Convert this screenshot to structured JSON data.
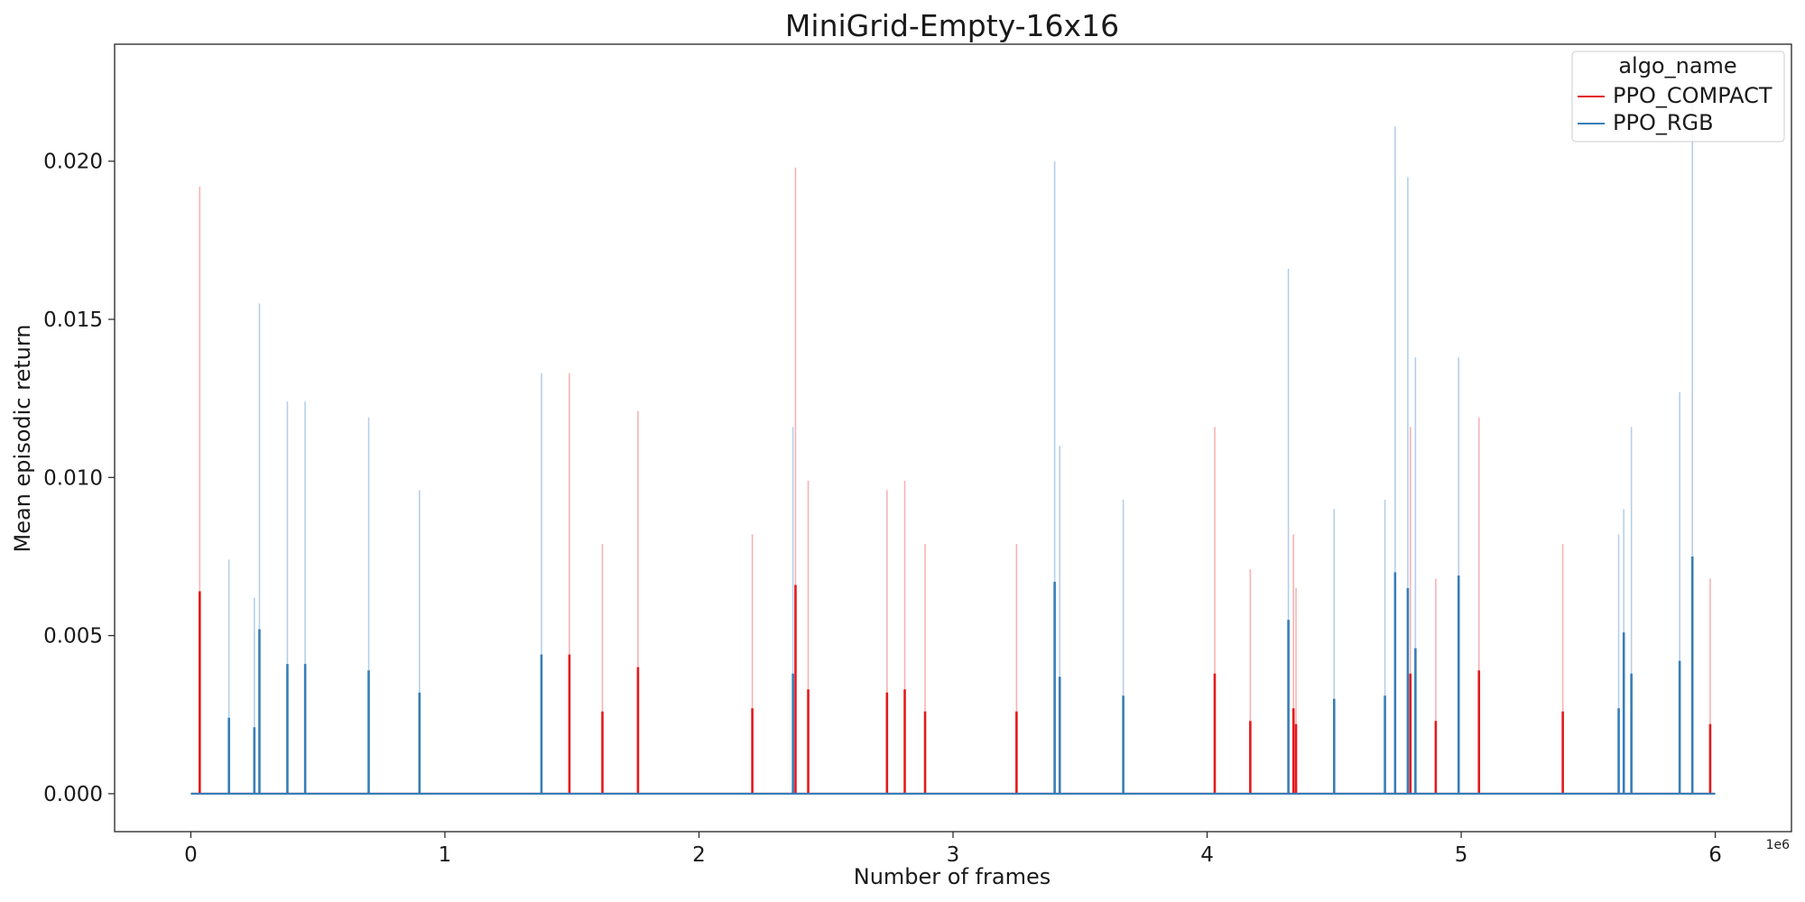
{
  "chart_data": {
    "type": "line",
    "title": "MiniGrid-Empty-16x16",
    "xlabel": "Number of frames",
    "ylabel": "Mean episodic return",
    "x_offset_label": "1e6",
    "xlim": [
      -0.3,
      6.3
    ],
    "ylim": [
      -0.0012,
      0.0237
    ],
    "x_ticks": [
      0,
      1,
      2,
      3,
      4,
      5,
      6
    ],
    "x_tick_labels": [
      "0",
      "1",
      "2",
      "3",
      "4",
      "5",
      "6"
    ],
    "y_ticks": [
      0.0,
      0.005,
      0.01,
      0.015,
      0.02
    ],
    "y_tick_labels": [
      "0.000",
      "0.005",
      "0.010",
      "0.015",
      "0.020"
    ],
    "x_range": [
      0.0,
      6.0
    ],
    "grid": false,
    "legend": {
      "title": "algo_name",
      "placement": "top-right"
    },
    "series": [
      {
        "name": "PPO_COMPACT",
        "color": "#e41a1c",
        "band_color": "#f7b3b3",
        "spikes": [
          {
            "x": 0.035,
            "mean": 0.0064,
            "upper": 0.0192
          },
          {
            "x": 1.49,
            "mean": 0.0044,
            "upper": 0.0133
          },
          {
            "x": 1.62,
            "mean": 0.0026,
            "upper": 0.0079
          },
          {
            "x": 1.76,
            "mean": 0.004,
            "upper": 0.0121
          },
          {
            "x": 2.21,
            "mean": 0.0027,
            "upper": 0.0082
          },
          {
            "x": 2.38,
            "mean": 0.0066,
            "upper": 0.0198
          },
          {
            "x": 2.43,
            "mean": 0.0033,
            "upper": 0.0099
          },
          {
            "x": 2.74,
            "mean": 0.0032,
            "upper": 0.0096
          },
          {
            "x": 2.81,
            "mean": 0.0033,
            "upper": 0.0099
          },
          {
            "x": 2.89,
            "mean": 0.0026,
            "upper": 0.0079
          },
          {
            "x": 3.25,
            "mean": 0.0026,
            "upper": 0.0079
          },
          {
            "x": 4.03,
            "mean": 0.0038,
            "upper": 0.0116
          },
          {
            "x": 4.17,
            "mean": 0.0023,
            "upper": 0.0071
          },
          {
            "x": 4.34,
            "mean": 0.0027,
            "upper": 0.0082
          },
          {
            "x": 4.35,
            "mean": 0.0022,
            "upper": 0.0065
          },
          {
            "x": 4.8,
            "mean": 0.0038,
            "upper": 0.0116
          },
          {
            "x": 4.9,
            "mean": 0.0023,
            "upper": 0.0068
          },
          {
            "x": 5.07,
            "mean": 0.0039,
            "upper": 0.0119
          },
          {
            "x": 5.4,
            "mean": 0.0026,
            "upper": 0.0079
          },
          {
            "x": 5.98,
            "mean": 0.0022,
            "upper": 0.0068
          }
        ]
      },
      {
        "name": "PPO_RGB",
        "color": "#377eb8",
        "band_color": "#b6cfe8",
        "spikes": [
          {
            "x": 0.15,
            "mean": 0.0024,
            "upper": 0.0074
          },
          {
            "x": 0.25,
            "mean": 0.0021,
            "upper": 0.0062
          },
          {
            "x": 0.27,
            "mean": 0.0052,
            "upper": 0.0155
          },
          {
            "x": 0.38,
            "mean": 0.0041,
            "upper": 0.0124
          },
          {
            "x": 0.45,
            "mean": 0.0041,
            "upper": 0.0124
          },
          {
            "x": 0.7,
            "mean": 0.0039,
            "upper": 0.0119
          },
          {
            "x": 0.9,
            "mean": 0.0032,
            "upper": 0.0096
          },
          {
            "x": 1.38,
            "mean": 0.0044,
            "upper": 0.0133
          },
          {
            "x": 2.37,
            "mean": 0.0038,
            "upper": 0.0116
          },
          {
            "x": 3.4,
            "mean": 0.0067,
            "upper": 0.02
          },
          {
            "x": 3.42,
            "mean": 0.0037,
            "upper": 0.011
          },
          {
            "x": 3.67,
            "mean": 0.0031,
            "upper": 0.0093
          },
          {
            "x": 4.32,
            "mean": 0.0055,
            "upper": 0.0166
          },
          {
            "x": 4.5,
            "mean": 0.003,
            "upper": 0.009
          },
          {
            "x": 4.7,
            "mean": 0.0031,
            "upper": 0.0093
          },
          {
            "x": 4.74,
            "mean": 0.007,
            "upper": 0.0211
          },
          {
            "x": 4.79,
            "mean": 0.0065,
            "upper": 0.0195
          },
          {
            "x": 4.82,
            "mean": 0.0046,
            "upper": 0.0138
          },
          {
            "x": 4.99,
            "mean": 0.0069,
            "upper": 0.0138
          },
          {
            "x": 5.62,
            "mean": 0.0027,
            "upper": 0.0082
          },
          {
            "x": 5.64,
            "mean": 0.0051,
            "upper": 0.009
          },
          {
            "x": 5.67,
            "mean": 0.0038,
            "upper": 0.0116
          },
          {
            "x": 5.86,
            "mean": 0.0042,
            "upper": 0.0127
          },
          {
            "x": 5.91,
            "mean": 0.0075,
            "upper": 0.0225
          }
        ]
      }
    ]
  }
}
